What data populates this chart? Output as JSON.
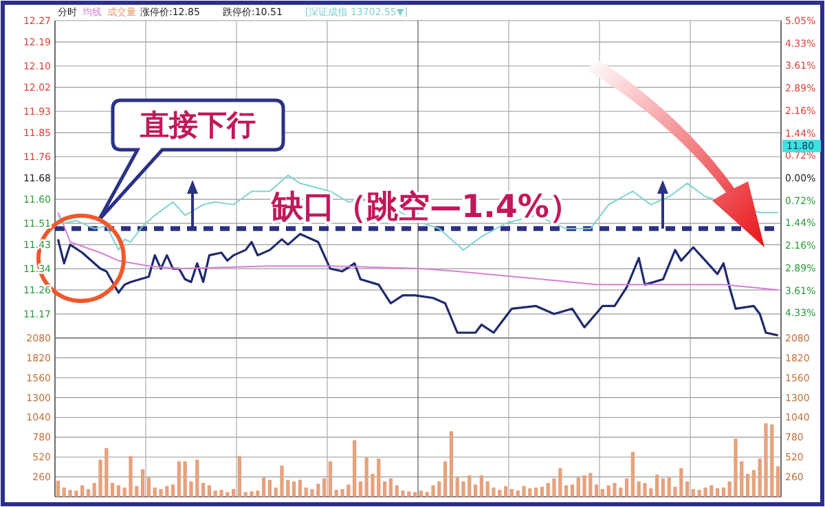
{
  "chart_data": [
    {
      "type": "line",
      "title": "分时",
      "grid": true,
      "tick_labels": "y",
      "categories": [
        null,
        null,
        null,
        null,
        null,
        null,
        null,
        null,
        null,
        null,
        null,
        null,
        null,
        null,
        null,
        null,
        null,
        null,
        null,
        null,
        null,
        null,
        null,
        null,
        null,
        null,
        null,
        null,
        null,
        null,
        null,
        null,
        null,
        null,
        null,
        null,
        null,
        null,
        null,
        null,
        null,
        null,
        null,
        null,
        null,
        null,
        null,
        null,
        null,
        null,
        null,
        null,
        null,
        null,
        null,
        null,
        null,
        null,
        null,
        null,
        null,
        null,
        null,
        null,
        null,
        null,
        null,
        null,
        null,
        null,
        null,
        null,
        null,
        null,
        null,
        null,
        null,
        null,
        null,
        null,
        null,
        null,
        null,
        null,
        null,
        null,
        null,
        null,
        null,
        null,
        null,
        null,
        null,
        null,
        null,
        null,
        null,
        null,
        null,
        null,
        null,
        null,
        null,
        null,
        null,
        null,
        null,
        null,
        null,
        null,
        null,
        null,
        null,
        null,
        null,
        null,
        null,
        null,
        null,
        null
      ],
      "ylim": [
        11.08,
        12.27
      ],
      "yticks": [
        11.17,
        11.26,
        11.34,
        11.43,
        11.51,
        {
          "value": 11.6,
          "label": "11.60"
        },
        11.68,
        11.76,
        11.85,
        11.93,
        12.02,
        {
          "value": 12.1,
          "label": "12.10"
        },
        12.19,
        12.27
      ],
      "y2lim": [
        -5.14,
        5.05
      ],
      "y2ticks": [
        {
          "value": -4.33,
          "label": "4.33%"
        },
        {
          "value": -3.61,
          "label": "3.61%"
        },
        {
          "value": -2.89,
          "label": "2.89%"
        },
        {
          "value": -2.16,
          "label": "2.16%"
        },
        {
          "value": -1.44,
          "label": "1.44%"
        },
        {
          "value": -0.72,
          "label": "0.72%"
        },
        {
          "value": 0,
          "label": "0.00%"
        },
        {
          "value": 0.72,
          "label": "0.72%"
        },
        {
          "value": 1.44,
          "label": "1.44%"
        },
        {
          "value": 2.16,
          "label": "2.16%"
        },
        {
          "value": 2.89,
          "label": "2.89%"
        },
        {
          "value": 3.61,
          "label": "3.61%"
        },
        {
          "value": 4.33,
          "label": "4.33%"
        },
        {
          "value": 5.05,
          "label": "5.05%"
        }
      ],
      "ref_lines": [
        {
          "axis": "y",
          "value": 11.49,
          "color": "#2b3185",
          "line_style": "dashed"
        }
      ],
      "annotations": [
        "涨停价:12.85",
        "跌停价:10.51",
        "直接下行",
        "缺口（跳空—1.4%）",
        {
          "text": "11.80",
          "y": 11.8
        }
      ],
      "series": [
        {
          "color": "#1f2a6e",
          "values": [
            11.45,
            11.36,
            11.43,
            null,
            11.4,
            11.38,
            11.36,
            11.34,
            11.33,
            11.29,
            11.25,
            11.28,
            11.29,
            null,
            null,
            11.31,
            11.39,
            11.34,
            11.39,
            11.34,
            11.34,
            11.3,
            11.29,
            11.36,
            11.29,
            11.39,
            null,
            11.4,
            11.37,
            11.39,
            null,
            11.41,
            11.44,
            11.39,
            null,
            11.41,
            null,
            11.45,
            11.43,
            null,
            11.47,
            11.46,
            null,
            11.44,
            null,
            11.34,
            null,
            11.33,
            null,
            11.36,
            11.3,
            null,
            null,
            11.28,
            null,
            11.21,
            null,
            11.24,
            null,
            11.24,
            null,
            null,
            11.23,
            null,
            11.21,
            null,
            11.1,
            null,
            null,
            11.1,
            11.13,
            null,
            11.1,
            null,
            null,
            11.19,
            null,
            null,
            null,
            11.2,
            null,
            null,
            11.17,
            null,
            null,
            11.19,
            null,
            11.12,
            null,
            null,
            11.2,
            null,
            11.2,
            null,
            11.27,
            null,
            11.38,
            11.28,
            null,
            null,
            11.3,
            null,
            11.41,
            11.37,
            null,
            11.42,
            null,
            11.37,
            null,
            11.32,
            11.36,
            11.27,
            11.19,
            null,
            null,
            11.2,
            11.17,
            11.1,
            null,
            11.09
          ]
        },
        {
          "name": "均线",
          "color": "#d77fd6",
          "values": [
            11.55,
            11.5,
            11.44,
            null,
            null,
            null,
            null,
            11.4,
            null,
            null,
            11.37,
            null,
            null,
            null,
            null,
            11.35,
            null,
            null,
            null,
            null,
            11.34,
            null,
            null,
            null,
            null,
            null,
            null,
            null,
            null,
            null,
            null,
            null,
            null,
            null,
            null,
            11.35,
            null,
            null,
            null,
            null,
            null,
            null,
            null,
            null,
            null,
            11.35,
            null,
            null,
            null,
            null,
            null,
            null,
            null,
            null,
            null,
            null,
            null,
            null,
            null,
            null,
            11.34,
            null,
            null,
            null,
            null,
            null,
            11.33,
            null,
            null,
            null,
            null,
            null,
            null,
            null,
            null,
            null,
            null,
            null,
            null,
            null,
            11.3,
            null,
            null,
            null,
            null,
            null,
            null,
            null,
            null,
            11.28,
            null,
            null,
            null,
            null,
            null,
            null,
            null,
            null,
            null,
            null,
            11.28,
            null,
            null,
            null,
            null,
            null,
            null,
            null,
            null,
            null,
            11.28,
            null,
            null,
            null,
            null,
            null,
            null,
            null,
            null,
            11.26
          ]
        },
        {
          "name": "[深证成指 13702.55▼]",
          "color": "#7fd3cf",
          "values": [
            11.54,
            11.51,
            null,
            11.52,
            null,
            null,
            11.49,
            null,
            11.5,
            null,
            11.41,
            11.45,
            11.44,
            null,
            11.5,
            null,
            11.54,
            null,
            null,
            11.59,
            null,
            11.54,
            null,
            null,
            11.58,
            null,
            11.59,
            null,
            null,
            11.58,
            null,
            null,
            11.63,
            null,
            null,
            11.63,
            null,
            null,
            11.69,
            null,
            11.66,
            null,
            null,
            null,
            null,
            11.63,
            null,
            null,
            11.59,
            null,
            11.6,
            null,
            null,
            null,
            null,
            null,
            11.56,
            null,
            null,
            11.52,
            null,
            null,
            null,
            11.49,
            null,
            null,
            null,
            11.41,
            null,
            null,
            11.46,
            null,
            null,
            null,
            11.51,
            null,
            null,
            null,
            null,
            11.54,
            null,
            null,
            null,
            null,
            11.49,
            null,
            null,
            null,
            11.49,
            null,
            null,
            11.58,
            null,
            null,
            null,
            11.63,
            null,
            null,
            11.58,
            null,
            null,
            11.61,
            null,
            null,
            11.66,
            null,
            null,
            11.61,
            null,
            null,
            null,
            null,
            null,
            null,
            null,
            null,
            11.55,
            null,
            null,
            11.55
          ]
        }
      ]
    },
    {
      "type": "bar",
      "grid": true,
      "tick_labels": "y",
      "categories": [
        null,
        null,
        null,
        null,
        null,
        null,
        null,
        null,
        null,
        null,
        null,
        null,
        null,
        null,
        null,
        null,
        null,
        null,
        null,
        null,
        null,
        null,
        null,
        null,
        null,
        null,
        null,
        null,
        null,
        null,
        null,
        null,
        null,
        null,
        null,
        null,
        null,
        null,
        null,
        null,
        null,
        null,
        null,
        null,
        null,
        null,
        null,
        null,
        null,
        null,
        null,
        null,
        null,
        null,
        null,
        null,
        null,
        null,
        null,
        null,
        null,
        null,
        null,
        null,
        null,
        null,
        null,
        null,
        null,
        null,
        null,
        null,
        null,
        null,
        null,
        null,
        null,
        null,
        null,
        null,
        null,
        null,
        null,
        null,
        null,
        null,
        null,
        null,
        null,
        null,
        null,
        null,
        null,
        null,
        null,
        null,
        null,
        null,
        null,
        null,
        null,
        null,
        null,
        null,
        null,
        null,
        null,
        null,
        null,
        null,
        null,
        null,
        null,
        null,
        null,
        null,
        null,
        null,
        null,
        null
      ],
      "ylim": [
        0,
        2080
      ],
      "yticks": [
        260,
        520,
        780,
        1040,
        1300,
        1560,
        1820,
        2080
      ],
      "y2lim": [
        0,
        2080
      ],
      "y2ticks": [
        260,
        520,
        780,
        1040,
        1300,
        1560,
        1820,
        2080
      ],
      "series": [
        {
          "name": "成交量",
          "color": "#e6a17c",
          "values": [
            210,
            120,
            90,
            80,
            150,
            100,
            180,
            485,
            637,
            180,
            150,
            120,
            533,
            140,
            360,
            250,
            120,
            100,
            140,
            160,
            464,
            464,
            200,
            485,
            180,
            150,
            80,
            90,
            60,
            100,
            533,
            60,
            70,
            80,
            250,
            220,
            120,
            408,
            220,
            200,
            220,
            120,
            100,
            170,
            240,
            464,
            90,
            100,
            160,
            740,
            200,
            512,
            300,
            498,
            200,
            240,
            150,
            80,
            70,
            60,
            80,
            60,
            150,
            200,
            464,
            858,
            250,
            200,
            280,
            160,
            280,
            200,
            120,
            90,
            140,
            100,
            80,
            140,
            110,
            120,
            130,
            180,
            240,
            374,
            150,
            160,
            250,
            280,
            311,
            160,
            100,
            150,
            180,
            120,
            240,
            588,
            200,
            180,
            110,
            290,
            240,
            250,
            130,
            374,
            200,
            100,
            90,
            120,
            150,
            110,
            120,
            200,
            761,
            464,
            300,
            350,
            500,
            962,
            948,
            400
          ]
        }
      ]
    }
  ]
}
